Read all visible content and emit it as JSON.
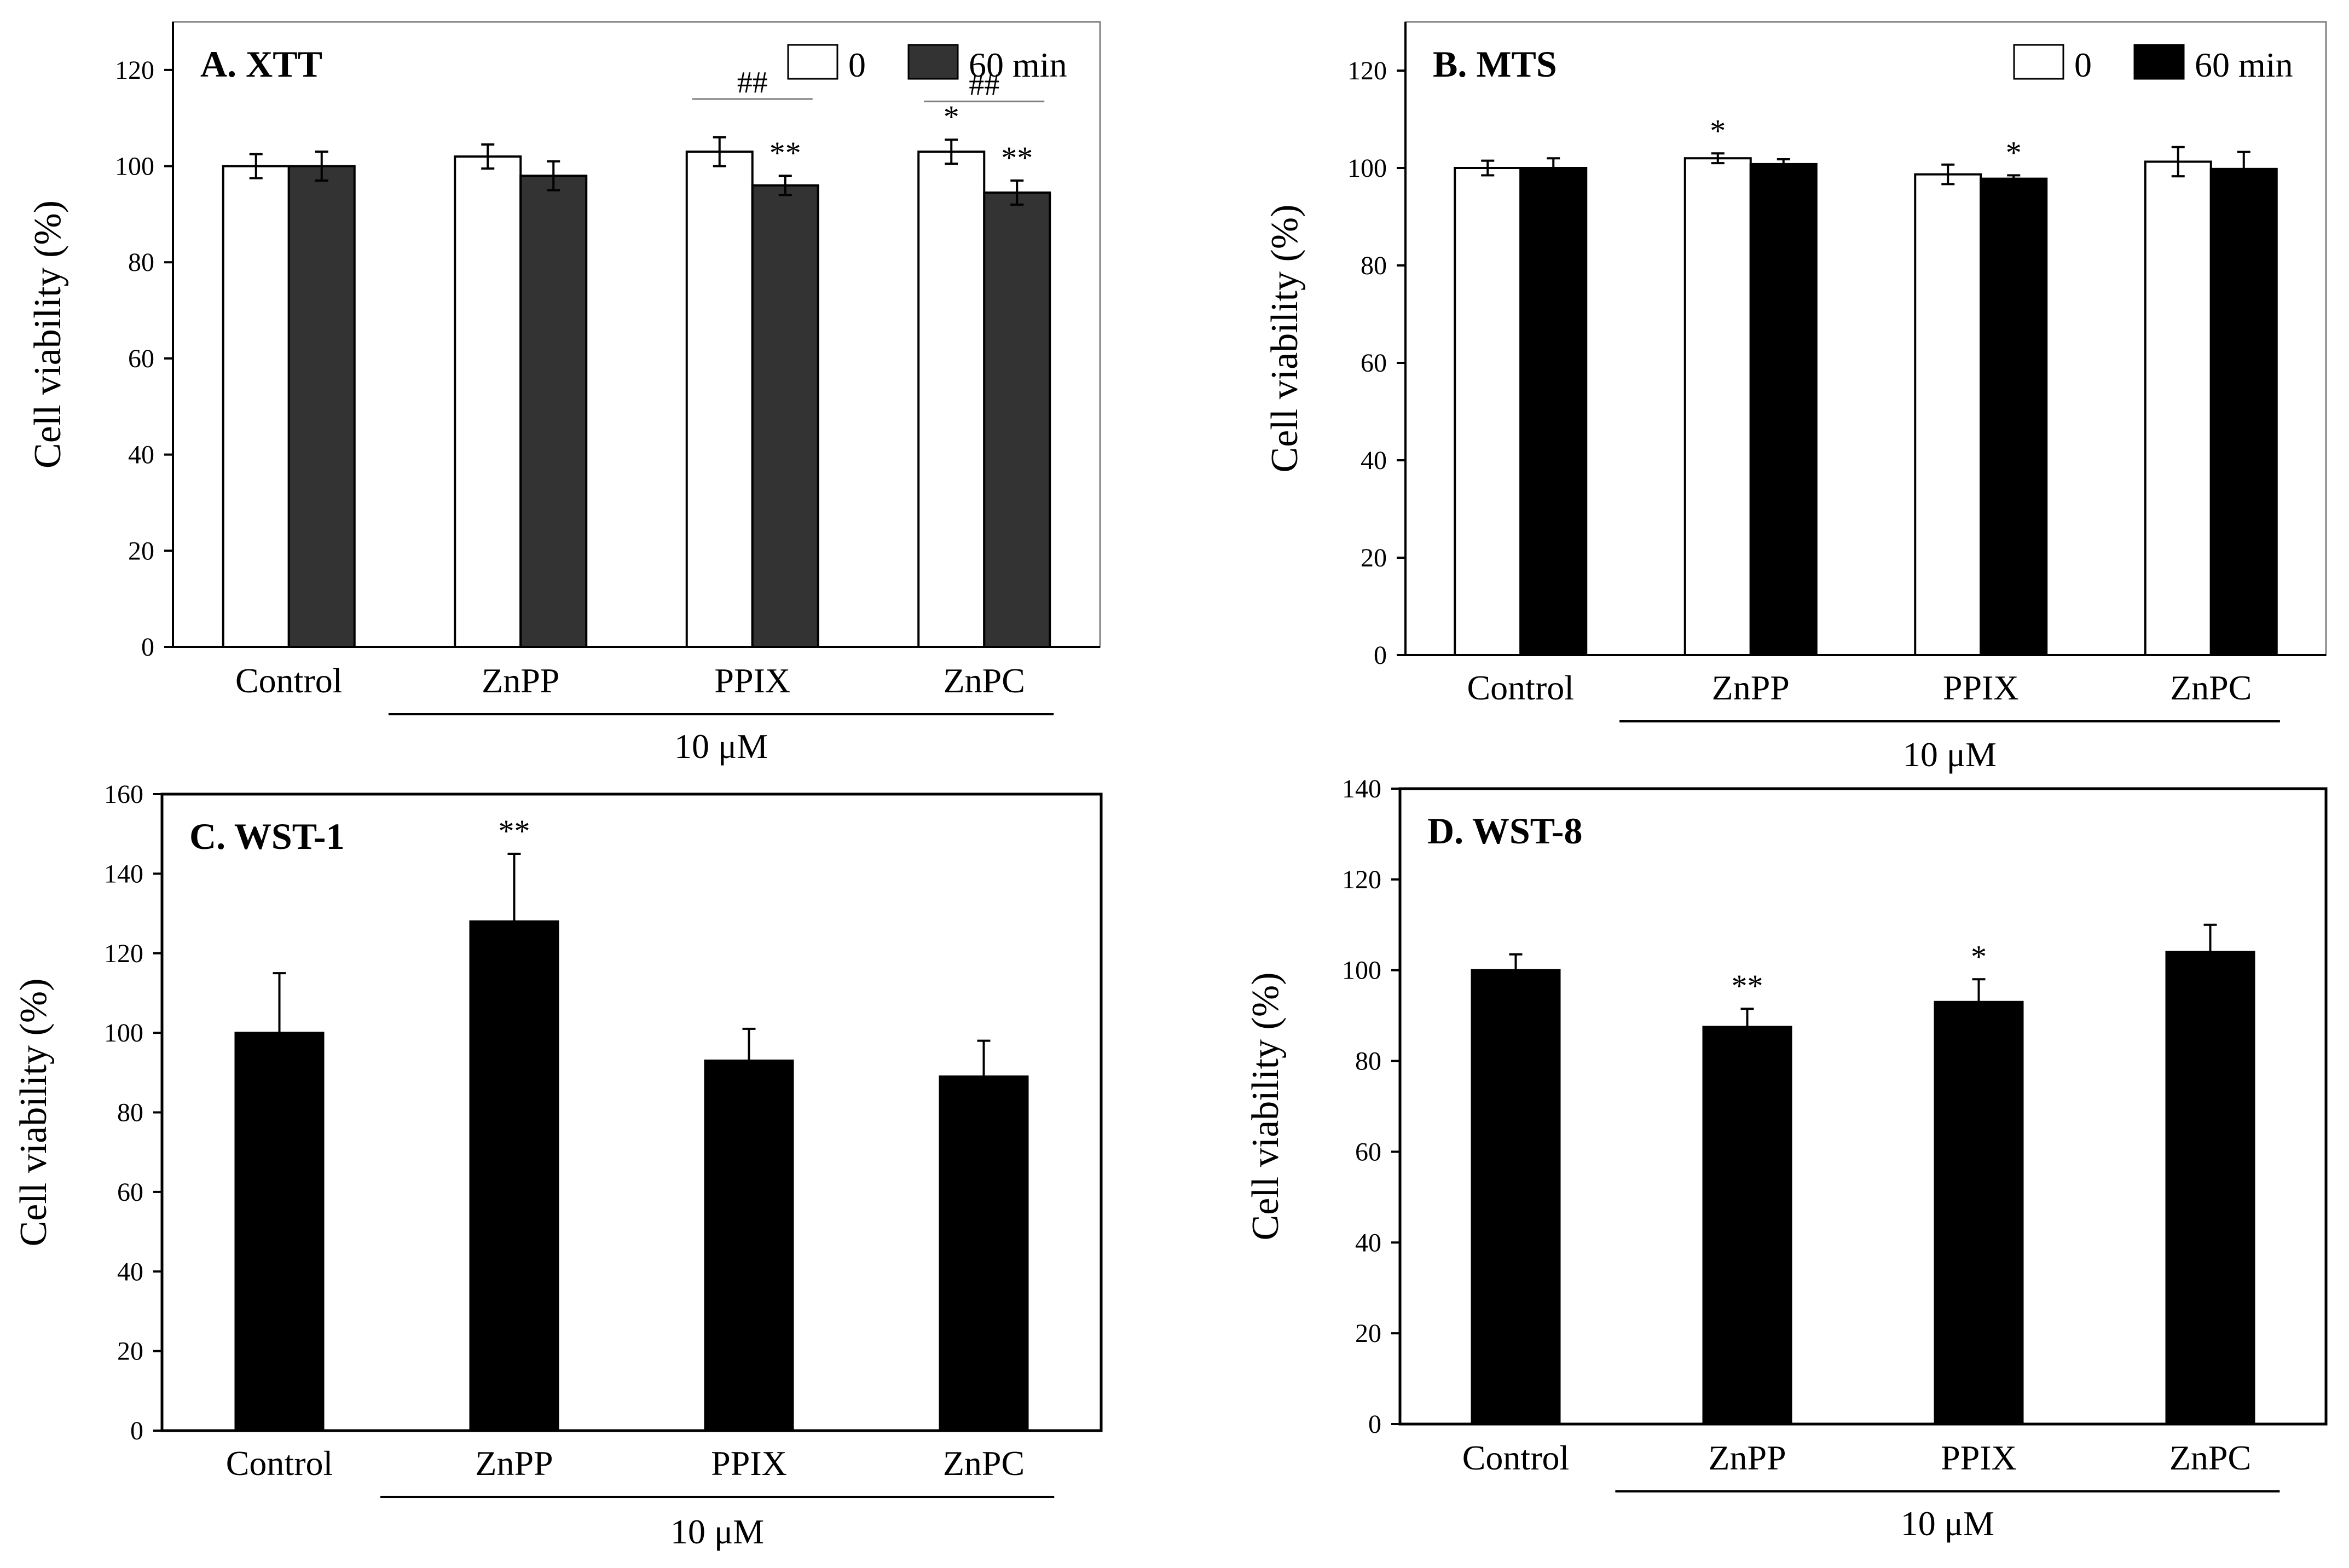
{
  "chart_data": [
    {
      "type": "bar",
      "title": "A. XTT",
      "ylabel": "Cell viability (%)",
      "xlabel": "",
      "ylim": [
        0,
        130
      ],
      "yticks": [
        0,
        20,
        40,
        60,
        80,
        100,
        120
      ],
      "categories": [
        "Control",
        "ZnPP",
        "PPIX",
        "ZnPC"
      ],
      "group_label": "10 μM",
      "legend_position": "top-right",
      "series": [
        {
          "name": "0",
          "color": "#ffffff",
          "values": [
            100,
            102,
            103,
            103
          ],
          "errors": [
            2.5,
            2.5,
            3,
            2.5
          ],
          "marks": [
            "",
            "",
            "",
            "*"
          ]
        },
        {
          "name": "60 min",
          "color": "#333333",
          "values": [
            100,
            98,
            96,
            94.5
          ],
          "errors": [
            3,
            3,
            2,
            2.5
          ],
          "marks": [
            "",
            "",
            "**",
            "**"
          ]
        }
      ],
      "comparison_marks": [
        "",
        "",
        "##",
        "##"
      ]
    },
    {
      "type": "bar",
      "title": "B. MTS",
      "ylabel": "Cell viability (%)",
      "xlabel": "",
      "ylim": [
        0,
        130
      ],
      "yticks": [
        0,
        20,
        40,
        60,
        80,
        100,
        120
      ],
      "categories": [
        "Control",
        "ZnPP",
        "PPIX",
        "ZnPC"
      ],
      "group_label": "10 μM",
      "legend_position": "top-right",
      "series": [
        {
          "name": "0",
          "color": "#ffffff",
          "values": [
            100,
            102,
            98.7,
            101.3
          ],
          "errors": [
            1.5,
            1,
            2,
            3
          ],
          "marks": [
            "",
            "*",
            "",
            ""
          ]
        },
        {
          "name": "60 min",
          "color": "#000000",
          "values": [
            100,
            100.8,
            97.8,
            99.8
          ],
          "errors": [
            2,
            1,
            0.7,
            3.5
          ],
          "marks": [
            "",
            "",
            "*",
            ""
          ]
        }
      ],
      "comparison_marks": [
        "",
        "",
        "",
        ""
      ]
    },
    {
      "type": "bar",
      "title": "C. WST-1",
      "ylabel": "Cell viability (%)",
      "xlabel": "",
      "ylim": [
        0,
        160
      ],
      "yticks": [
        0,
        20,
        40,
        60,
        80,
        100,
        120,
        140,
        160
      ],
      "categories": [
        "Control",
        "ZnPP",
        "PPIX",
        "ZnPC"
      ],
      "group_label": "10 μM",
      "series": [
        {
          "name": "",
          "color": "#000000",
          "values": [
            100,
            128,
            93,
            89
          ],
          "errors": [
            15,
            17,
            8,
            9
          ],
          "marks": [
            "",
            "**",
            "",
            ""
          ]
        }
      ],
      "comparison_marks": [
        "",
        "",
        "",
        ""
      ]
    },
    {
      "type": "bar",
      "title": "D. WST-8",
      "ylabel": "Cell viability (%)",
      "xlabel": "",
      "ylim": [
        0,
        140
      ],
      "yticks": [
        0,
        20,
        40,
        60,
        80,
        100,
        120,
        140
      ],
      "categories": [
        "Control",
        "ZnPP",
        "PPIX",
        "ZnPC"
      ],
      "group_label": "10 μM",
      "series": [
        {
          "name": "",
          "color": "#000000",
          "values": [
            100,
            87.5,
            93,
            104
          ],
          "errors": [
            3.5,
            4,
            5,
            6
          ],
          "marks": [
            "",
            "**",
            "*",
            ""
          ]
        }
      ],
      "comparison_marks": [
        "",
        "",
        "",
        ""
      ]
    }
  ]
}
